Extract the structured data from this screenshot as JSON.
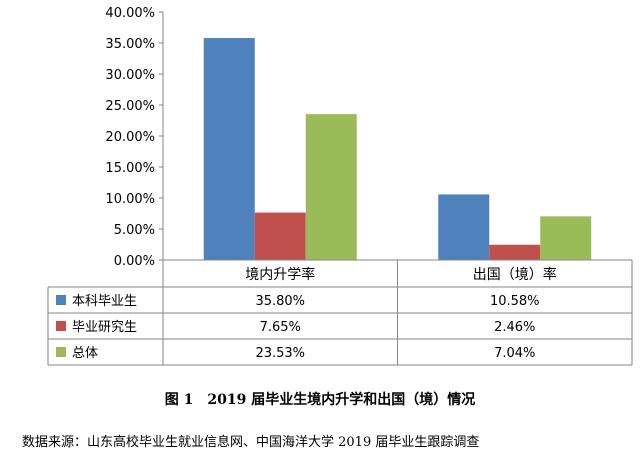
{
  "chart_data": {
    "type": "bar",
    "categories": [
      "境内升学率",
      "出国（境）率"
    ],
    "series": [
      {
        "name": "本科毕业生",
        "values": [
          35.8,
          10.58
        ],
        "labels": [
          "35.80%",
          "10.58%"
        ],
        "color": "#4f81bd"
      },
      {
        "name": "毕业研究生",
        "values": [
          7.65,
          2.46
        ],
        "labels": [
          "7.65%",
          "2.46%"
        ],
        "color": "#c0504d"
      },
      {
        "name": "总体",
        "values": [
          23.53,
          7.04
        ],
        "labels": [
          "23.53%",
          "7.04%"
        ],
        "color": "#9bbb59"
      }
    ],
    "ylim": [
      0,
      40
    ],
    "yticks": [
      "0.00%",
      "5.00%",
      "10.00%",
      "15.00%",
      "20.00%",
      "25.00%",
      "30.00%",
      "35.00%",
      "40.00%"
    ],
    "grid": false,
    "legend": "data-table-rows"
  },
  "caption": "图 1　2019 届毕业生境内升学和出国（境）情况",
  "source": "数据来源：山东高校毕业生就业信息网、中国海洋大学 2019 届毕业生跟踪调查"
}
